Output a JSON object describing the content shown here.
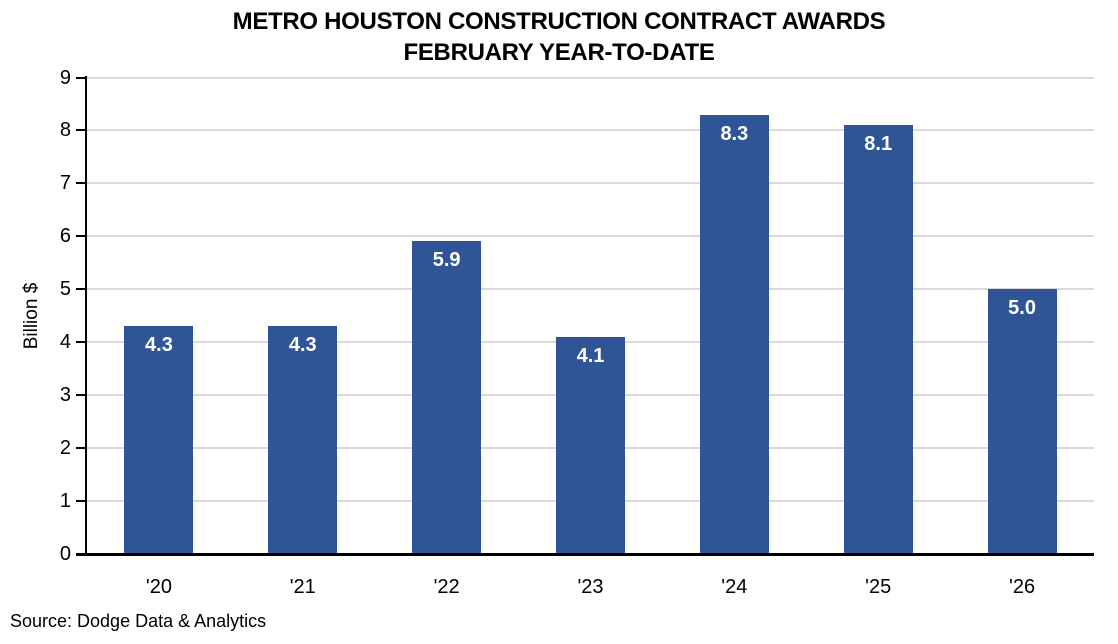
{
  "title": {
    "line1": "METRO HOUSTON CONSTRUCTION CONTRACT AWARDS",
    "line2": "FEBRUARY YEAR-TO-DATE"
  },
  "source": "Source: Dodge Data & Analytics",
  "chart_data": {
    "type": "bar",
    "title": "METRO HOUSTON CONSTRUCTION CONTRACT AWARDS FEBRUARY YEAR-TO-DATE",
    "categories": [
      "'20",
      "'21",
      "'22",
      "'23",
      "'24",
      "'25",
      "'26"
    ],
    "values": [
      4.3,
      4.3,
      5.9,
      4.1,
      8.3,
      8.1,
      5.0
    ],
    "data_labels": [
      "4.3",
      "4.3",
      "5.9",
      "4.1",
      "8.3",
      "8.1",
      "5.0"
    ],
    "xlabel": "",
    "ylabel": "Billion $",
    "ylim": [
      0,
      9
    ],
    "ytick_step": 1,
    "yticks": [
      0,
      1,
      2,
      3,
      4,
      5,
      6,
      7,
      8,
      9
    ],
    "grid": true,
    "legend": "none",
    "colors": {
      "bar": "#2F5597",
      "gridline": "#D9D9D9",
      "axis": "#000000",
      "bar_label_text": "#FFFFFF",
      "text": "#000000"
    }
  }
}
